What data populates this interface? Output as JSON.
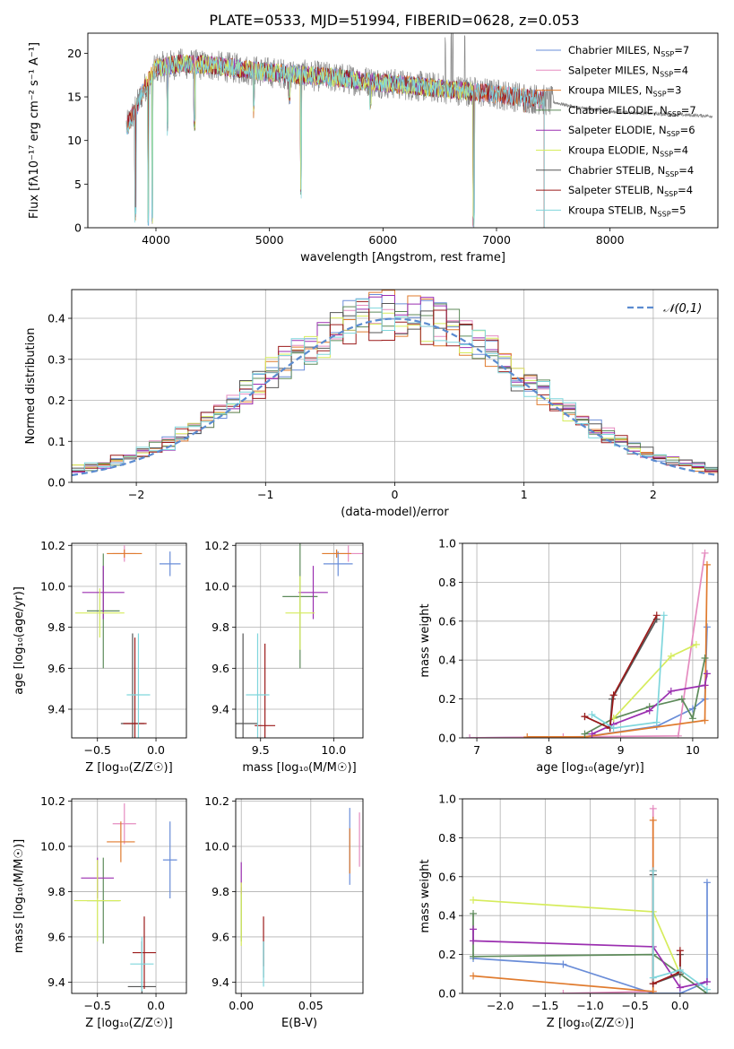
{
  "figure_title": "PLATE=0533, MJD=51994, FIBERID=0628, z=0.053",
  "colors": {
    "Chabrier MILES": "#6a8dd8",
    "Salpeter MILES": "#e58cc0",
    "Kroupa MILES": "#e07b2e",
    "Chabrier ELODIE": "#5d8a5a",
    "Salpeter ELODIE": "#9b2fb0",
    "Kroupa ELODIE": "#d6ec5c",
    "Chabrier STELIB": "#555555",
    "Salpeter STELIB": "#9b1a1a",
    "Kroupa STELIB": "#7fd6dc"
  },
  "chart_data": [
    {
      "id": "spectrum",
      "type": "line",
      "title": "PLATE=0533, MJD=51994, FIBERID=0628, z=0.053",
      "xlabel": "wavelength [Angstrom, rest frame]",
      "ylabel": "Flux [fλ10⁻¹⁷ erg cm⁻² s⁻¹ A⁻¹]",
      "xlim": [
        3400,
        8950
      ],
      "ylim": [
        0,
        22.3
      ],
      "xticks": [
        "4000",
        "5000",
        "6000",
        "7000",
        "8000"
      ],
      "yticks": [
        "0",
        "5",
        "10",
        "15",
        "20"
      ],
      "grid": false,
      "legend_position": "top-right",
      "legend": [
        {
          "name": "Chabrier MILES",
          "nssp": "7"
        },
        {
          "name": "Salpeter MILES",
          "nssp": "4"
        },
        {
          "name": "Kroupa MILES",
          "nssp": "3"
        },
        {
          "name": "Chabrier ELODIE",
          "nssp": "7"
        },
        {
          "name": "Salpeter ELODIE",
          "nssp": "6"
        },
        {
          "name": "Kroupa ELODIE",
          "nssp": "4"
        },
        {
          "name": "Chabrier STELIB",
          "nssp": "4"
        },
        {
          "name": "Salpeter STELIB",
          "nssp": "4"
        },
        {
          "name": "Kroupa STELIB",
          "nssp": "5"
        }
      ],
      "continuum": [
        [
          3740,
          11.5
        ],
        [
          3800,
          13
        ],
        [
          3900,
          16
        ],
        [
          4000,
          18.3
        ],
        [
          4200,
          18.8
        ],
        [
          4500,
          18.6
        ],
        [
          5000,
          17.8
        ],
        [
          5500,
          17.3
        ],
        [
          6000,
          16.6
        ],
        [
          6500,
          16
        ],
        [
          7000,
          15.3
        ],
        [
          7400,
          14.7
        ],
        [
          7700,
          13.8
        ],
        [
          8000,
          13.3
        ],
        [
          8500,
          13
        ],
        [
          8900,
          12.8
        ]
      ],
      "absorption_features": [
        [
          3820,
          0.5
        ],
        [
          3934,
          0
        ],
        [
          3968,
          0.4
        ],
        [
          4102,
          10.5
        ],
        [
          4340,
          11
        ],
        [
          4861,
          12.5
        ],
        [
          5175,
          14
        ],
        [
          5278,
          3.3
        ],
        [
          5890,
          13.5
        ],
        [
          6563,
          15.2
        ],
        [
          6800,
          0
        ],
        [
          7250,
          13
        ]
      ],
      "emission_features": [
        [
          6550,
          21
        ],
        [
          6600,
          21.5
        ],
        [
          6615,
          22.3
        ],
        [
          6720,
          21.8
        ]
      ]
    },
    {
      "id": "residuals",
      "type": "area",
      "xlabel": "(data-model)/error",
      "ylabel": "Normed distribution",
      "xlim": [
        -2.5,
        2.5
      ],
      "ylim": [
        0,
        0.47
      ],
      "xticks": [
        "−2",
        "−1",
        "0",
        "1",
        "2"
      ],
      "yticks": [
        "0.0",
        "0.1",
        "0.2",
        "0.3",
        "0.4"
      ],
      "grid": true,
      "legend_position": "top-right",
      "legend_label": "𝒩(0,1)",
      "normal_mean": 0,
      "normal_sigma": 1,
      "bin_width": 0.1
    },
    {
      "id": "age-Z",
      "type": "scatter",
      "xlabel": "Z [log₁₀(Z/Z☉)]",
      "ylabel": "age  [log₁₀(age/yr)]",
      "xlim": [
        -0.72,
        0.26
      ],
      "ylim": [
        9.26,
        10.21
      ],
      "xticks": [
        "−0.5",
        "0.0"
      ],
      "yticks": [
        "9.4",
        "9.6",
        "9.8",
        "10.0",
        "10.2"
      ],
      "points": [
        {
          "model": "Chabrier MILES",
          "x": 0.12,
          "y": 10.11,
          "xerr": 0.09,
          "yerr": 0.06
        },
        {
          "model": "Salpeter MILES",
          "x": -0.27,
          "y": 10.16,
          "xerr": 0.1,
          "yerr": 0.04
        },
        {
          "model": "Kroupa MILES",
          "x": -0.27,
          "y": 10.16,
          "xerr": 0.15,
          "yerr": 0.02
        },
        {
          "model": "Chabrier ELODIE",
          "x": -0.45,
          "y": 9.88,
          "xerr": 0.14,
          "yerr": 0.28
        },
        {
          "model": "Salpeter ELODIE",
          "x": -0.45,
          "y": 9.97,
          "xerr": 0.18,
          "yerr": 0.13
        },
        {
          "model": "Kroupa ELODIE",
          "x": -0.48,
          "y": 9.87,
          "xerr": 0.21,
          "yerr": 0.12
        },
        {
          "model": "Chabrier STELIB",
          "x": -0.2,
          "y": 9.33,
          "xerr": 0.1,
          "yerr": 0.44
        },
        {
          "model": "Salpeter STELIB",
          "x": -0.18,
          "y": 9.33,
          "xerr": 0.1,
          "yerr": 0.42
        },
        {
          "model": "Kroupa STELIB",
          "x": -0.15,
          "y": 9.47,
          "xerr": 0.1,
          "yerr": 0.3
        }
      ]
    },
    {
      "id": "age-mass",
      "type": "scatter",
      "xlabel": "mass [log₁₀(M/M☉)]",
      "ylabel": "",
      "xlim": [
        9.33,
        10.2
      ],
      "ylim": [
        9.26,
        10.21
      ],
      "xticks": [
        "9.5",
        "10.0"
      ],
      "yticks": [
        "9.4",
        "9.6",
        "9.8",
        "10.0",
        "10.2"
      ],
      "points": [
        {
          "model": "Chabrier MILES",
          "x": 10.03,
          "y": 10.11,
          "xerr": 0.1,
          "yerr": 0.06
        },
        {
          "model": "Salpeter MILES",
          "x": 10.1,
          "y": 10.16,
          "xerr": 0.1,
          "yerr": 0.04
        },
        {
          "model": "Kroupa MILES",
          "x": 10.02,
          "y": 10.16,
          "xerr": 0.1,
          "yerr": 0.02
        },
        {
          "model": "Chabrier ELODIE",
          "x": 9.77,
          "y": 9.95,
          "xerr": 0.12,
          "yerr": 0.35
        },
        {
          "model": "Salpeter ELODIE",
          "x": 9.86,
          "y": 9.97,
          "xerr": 0.1,
          "yerr": 0.13
        },
        {
          "model": "Kroupa ELODIE",
          "x": 9.77,
          "y": 9.87,
          "xerr": 0.1,
          "yerr": 0.18
        },
        {
          "model": "Chabrier STELIB",
          "x": 9.38,
          "y": 9.33,
          "xerr": 0.1,
          "yerr": 0.44
        },
        {
          "model": "Salpeter STELIB",
          "x": 9.53,
          "y": 9.32,
          "xerr": 0.07,
          "yerr": 0.4
        },
        {
          "model": "Kroupa STELIB",
          "x": 9.48,
          "y": 9.47,
          "xerr": 0.08,
          "yerr": 0.3
        }
      ]
    },
    {
      "id": "weight-age",
      "type": "line",
      "xlabel": "age  [log₁₀(age/yr)]",
      "ylabel": "mass weight",
      "xlim": [
        6.8,
        10.35
      ],
      "ylim": [
        0,
        1
      ],
      "xticks": [
        "7",
        "8",
        "9",
        "10"
      ],
      "yticks": [
        "0.0",
        "0.2",
        "0.4",
        "0.6",
        "0.8",
        "1.0"
      ],
      "grid": true,
      "series": [
        {
          "model": "Chabrier MILES",
          "x": [
            6.9,
            8.5,
            9.5,
            10.0,
            10.17,
            10.2
          ],
          "y": [
            0.0,
            0.005,
            0.06,
            0.15,
            0.2,
            0.57
          ]
        },
        {
          "model": "Salpeter MILES",
          "x": [
            6.9,
            8.2,
            9.8,
            10.17
          ],
          "y": [
            0.0,
            0.005,
            0.01,
            0.95
          ]
        },
        {
          "model": "Kroupa MILES",
          "x": [
            7.7,
            8.5,
            10.17,
            10.2
          ],
          "y": [
            0.005,
            0.005,
            0.09,
            0.89
          ]
        },
        {
          "model": "Chabrier ELODIE",
          "x": [
            8.5,
            8.9,
            9.4,
            9.85,
            10.0,
            10.17
          ],
          "y": [
            0.02,
            0.1,
            0.16,
            0.2,
            0.1,
            0.41
          ]
        },
        {
          "model": "Salpeter ELODIE",
          "x": [
            8.6,
            8.9,
            9.4,
            9.7,
            10.17,
            10.2
          ],
          "y": [
            0.02,
            0.07,
            0.14,
            0.24,
            0.27,
            0.33
          ]
        },
        {
          "model": "Kroupa ELODIE",
          "x": [
            8.9,
            9.7,
            10.05
          ],
          "y": [
            0.1,
            0.42,
            0.48
          ]
        },
        {
          "model": "Chabrier STELIB",
          "x": [
            8.5,
            8.85,
            8.88,
            9.5
          ],
          "y": [
            0.11,
            0.05,
            0.2,
            0.61
          ]
        },
        {
          "model": "Salpeter STELIB",
          "x": [
            8.5,
            8.85,
            8.9,
            9.5
          ],
          "y": [
            0.11,
            0.05,
            0.22,
            0.63
          ]
        },
        {
          "model": "Kroupa STELIB",
          "x": [
            8.6,
            8.9,
            9.5,
            9.6
          ],
          "y": [
            0.12,
            0.05,
            0.08,
            0.63
          ]
        }
      ]
    },
    {
      "id": "mass-Z",
      "type": "scatter",
      "xlabel": "Z [log₁₀(Z/Z☉)]",
      "ylabel": "mass [log₁₀(M/M☉)]",
      "xlim": [
        -0.72,
        0.26
      ],
      "ylim": [
        9.35,
        10.21
      ],
      "xticks": [
        "−0.5",
        "0.0"
      ],
      "yticks": [
        "9.4",
        "9.6",
        "9.8",
        "10.0",
        "10.2"
      ],
      "points": [
        {
          "model": "Chabrier MILES",
          "x": 0.12,
          "y": 9.94,
          "xerr": 0.06,
          "yerr": 0.17
        },
        {
          "model": "Salpeter MILES",
          "x": -0.27,
          "y": 10.1,
          "xerr": 0.1,
          "yerr": 0.09
        },
        {
          "model": "Kroupa MILES",
          "x": -0.3,
          "y": 10.02,
          "xerr": 0.12,
          "yerr": 0.09
        },
        {
          "model": "Chabrier ELODIE",
          "x": -0.45,
          "y": 9.76,
          "xerr": 0.14,
          "yerr": 0.19
        },
        {
          "model": "Salpeter ELODIE",
          "x": -0.5,
          "y": 9.86,
          "xerr": 0.14,
          "yerr": 0.09
        },
        {
          "model": "Kroupa ELODIE",
          "x": -0.5,
          "y": 9.76,
          "xerr": 0.2,
          "yerr": 0.18
        },
        {
          "model": "Chabrier STELIB",
          "x": -0.12,
          "y": 9.38,
          "xerr": 0.12,
          "yerr": 0.2
        },
        {
          "model": "Salpeter STELIB",
          "x": -0.1,
          "y": 9.53,
          "xerr": 0.1,
          "yerr": 0.16
        },
        {
          "model": "Kroupa STELIB",
          "x": -0.12,
          "y": 9.48,
          "xerr": 0.1,
          "yerr": 0.12
        }
      ]
    },
    {
      "id": "mass-ebv",
      "type": "scatter",
      "xlabel": "E(B-V)",
      "ylabel": "",
      "xlim": [
        -0.004,
        0.0875
      ],
      "ylim": [
        9.35,
        10.21
      ],
      "xticks": [
        "0.00",
        "0.05"
      ],
      "yticks": [
        "9.4",
        "9.6",
        "9.8",
        "10.0",
        "10.2"
      ],
      "points": [
        {
          "model": "Chabrier MILES",
          "x": 0.078,
          "y": 10.0,
          "xerr": 0,
          "yerr": 0.17
        },
        {
          "model": "Salpeter MILES",
          "x": 0.085,
          "y": 10.03,
          "xerr": 0,
          "yerr": 0.12
        },
        {
          "model": "Kroupa MILES",
          "x": 0.078,
          "y": 9.98,
          "xerr": 0,
          "yerr": 0.1
        },
        {
          "model": "Chabrier ELODIE",
          "x": 0.0,
          "y": 9.7,
          "xerr": 0,
          "yerr": 0.12
        },
        {
          "model": "Salpeter ELODIE",
          "x": 0.0,
          "y": 9.86,
          "xerr": 0,
          "yerr": 0.07
        },
        {
          "model": "Kroupa ELODIE",
          "x": 0.0,
          "y": 9.7,
          "xerr": 0,
          "yerr": 0.14
        },
        {
          "model": "Chabrier STELIB",
          "x": 0.016,
          "y": 9.5,
          "xerr": 0,
          "yerr": 0.08
        },
        {
          "model": "Salpeter STELIB",
          "x": 0.016,
          "y": 9.58,
          "xerr": 0,
          "yerr": 0.11
        },
        {
          "model": "Kroupa STELIB",
          "x": 0.016,
          "y": 9.48,
          "xerr": 0,
          "yerr": 0.1
        }
      ]
    },
    {
      "id": "weight-Z",
      "type": "line",
      "xlabel": "Z [log₁₀(Z/Z☉)]",
      "ylabel": "mass weight",
      "xlim": [
        -2.42,
        0.42
      ],
      "ylim": [
        0,
        1
      ],
      "xticks": [
        "−2.0",
        "−1.5",
        "−1.0",
        "−0.5",
        "0.0"
      ],
      "yticks": [
        "0.0",
        "0.2",
        "0.4",
        "0.6",
        "0.8",
        "1.0"
      ],
      "grid": true,
      "series": [
        {
          "model": "Chabrier MILES",
          "x": [
            -2.3,
            -1.3,
            -0.3,
            0.0,
            0.3,
            0.3
          ],
          "y": [
            0.18,
            0.15,
            0.0,
            0.0,
            0.06,
            0.57
          ]
        },
        {
          "model": "Salpeter MILES",
          "x": [
            -1.3,
            -0.3,
            -0.3
          ],
          "y": [
            0.0,
            0.01,
            0.95
          ]
        },
        {
          "model": "Kroupa MILES",
          "x": [
            -2.3,
            -0.3,
            -0.3
          ],
          "y": [
            0.09,
            0.01,
            0.89
          ]
        },
        {
          "model": "Chabrier ELODIE",
          "x": [
            -2.3,
            -2.3,
            -0.3,
            0.0,
            0.3
          ],
          "y": [
            0.41,
            0.19,
            0.2,
            0.1,
            0.0
          ]
        },
        {
          "model": "Salpeter ELODIE",
          "x": [
            -2.3,
            -2.3,
            -0.3,
            0.0,
            0.3
          ],
          "y": [
            0.33,
            0.27,
            0.24,
            0.03,
            0.06
          ]
        },
        {
          "model": "Kroupa ELODIE",
          "x": [
            -2.3,
            -0.3,
            0.0
          ],
          "y": [
            0.48,
            0.42,
            0.1
          ]
        },
        {
          "model": "Chabrier STELIB",
          "x": [
            -0.3,
            -0.3,
            0.0,
            0.0
          ],
          "y": [
            0.61,
            0.05,
            0.1,
            0.2
          ]
        },
        {
          "model": "Salpeter STELIB",
          "x": [
            -0.3,
            -0.3,
            0.0,
            0.0
          ],
          "y": [
            0.63,
            0.05,
            0.11,
            0.22
          ]
        },
        {
          "model": "Kroupa STELIB",
          "x": [
            -0.3,
            -0.3,
            0.0,
            0.3
          ],
          "y": [
            0.63,
            0.08,
            0.12,
            0.02
          ]
        }
      ]
    }
  ]
}
